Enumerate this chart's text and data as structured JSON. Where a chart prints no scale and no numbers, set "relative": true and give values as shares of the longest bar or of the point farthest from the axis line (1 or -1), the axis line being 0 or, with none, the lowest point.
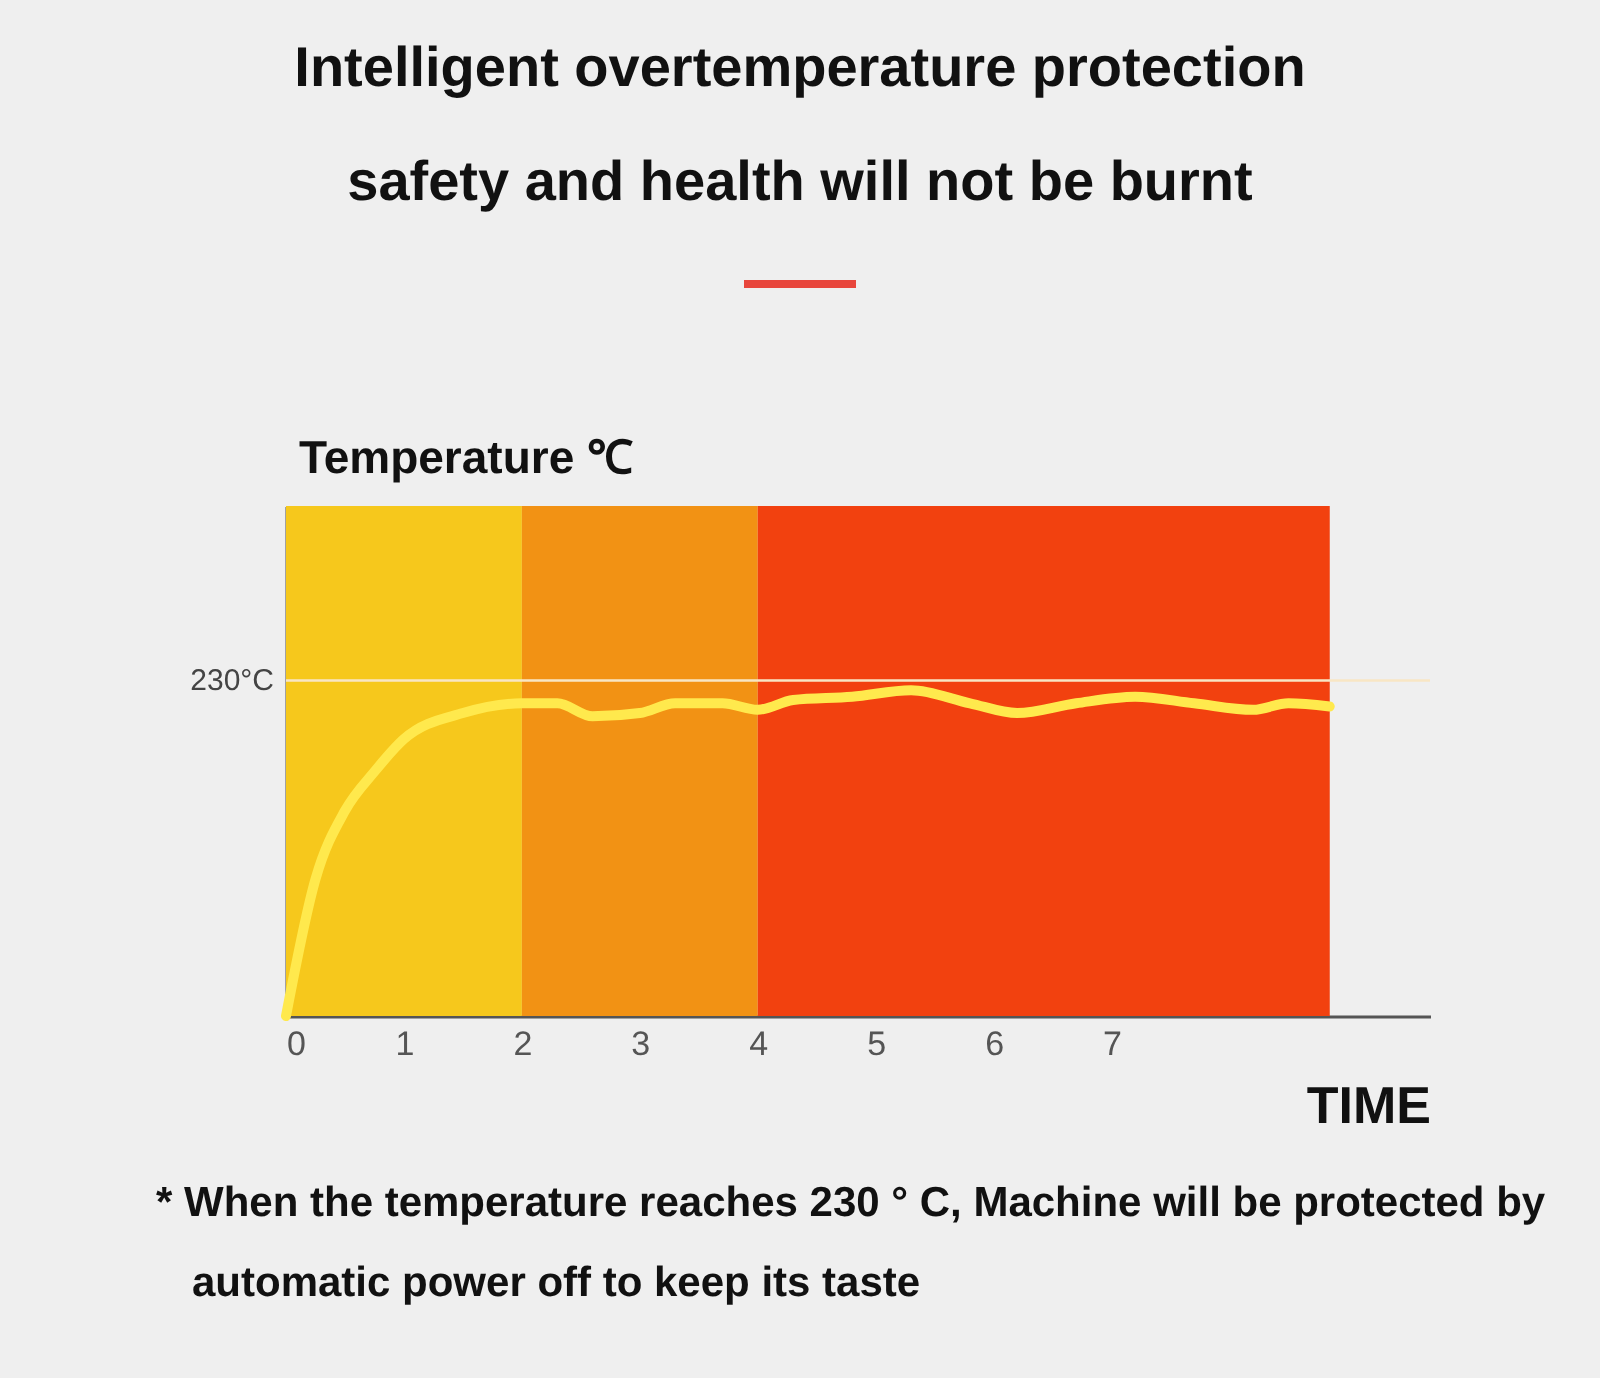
{
  "chart_data": {
    "type": "line",
    "title": "Intelligent overtemperature protection",
    "subtitle": "safety and health will not be burnt",
    "xlabel": "TIME",
    "ylabel": "Temperature ℃",
    "relative": true,
    "x": [
      0,
      0.25,
      0.5,
      0.75,
      1,
      1.5,
      2,
      2.3,
      2.6,
      3,
      3.3,
      3.7,
      4,
      4.3,
      4.8,
      5.3,
      5.8,
      6.2,
      6.7,
      7.2,
      7.7,
      8.2,
      8.5,
      8.85
    ],
    "series": [
      {
        "color": "#ffe94d",
        "values": [
          0,
          0.42,
          0.63,
          0.75,
          0.85,
          0.93,
          0.96,
          0.96,
          0.92,
          0.93,
          0.96,
          0.96,
          0.94,
          0.97,
          0.98,
          1,
          0.96,
          0.93,
          0.96,
          0.98,
          0.96,
          0.94,
          0.96,
          0.95
        ]
      }
    ],
    "xlim": [
      0,
      9.7
    ],
    "xticks": [
      0,
      1,
      2,
      3,
      4,
      5,
      6,
      7
    ],
    "bands": [
      {
        "axis": "x",
        "from": 0,
        "to": 2,
        "color": "#f6c81c"
      },
      {
        "axis": "x",
        "from": 2,
        "to": 4,
        "color": "#f29214"
      },
      {
        "axis": "x",
        "from": 4,
        "to": 8.85,
        "color": "#f2410f"
      }
    ],
    "ref_lines": [
      {
        "axis": "y",
        "value": 1.03,
        "label": "230°C",
        "color": "#f8e6c4"
      }
    ],
    "annotations": [
      "* When the temperature reaches 230 °  C, Machine will be protected by automatic power off to keep its taste"
    ],
    "marker": "none",
    "line_style": "solid"
  }
}
